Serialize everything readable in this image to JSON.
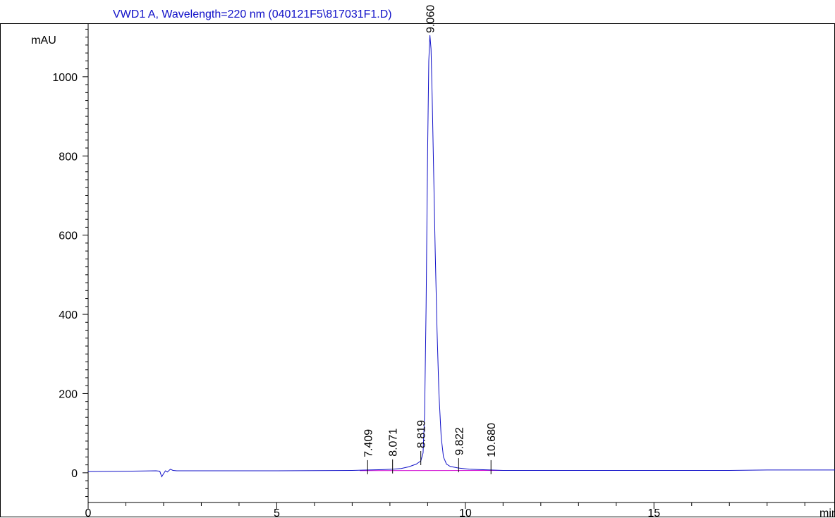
{
  "chart_data": {
    "type": "line",
    "title": "VWD1 A, Wavelength=220 nm (040121F5\\817031F1.D)",
    "ylabel": "mAU",
    "xlabel": "min",
    "xlim": [
      0,
      19.8
    ],
    "ylim": [
      -75,
      1135
    ],
    "x_ticks": [
      0,
      5,
      10,
      15
    ],
    "y_ticks": [
      0,
      200,
      400,
      600,
      800,
      1000
    ],
    "grid": false,
    "colors": {
      "signal": "#1010c8",
      "baseline": "#d000d0",
      "axis": "#000000"
    },
    "series": [
      {
        "values": [
          [
            0.0,
            3
          ],
          [
            0.5,
            3.5
          ],
          [
            1.0,
            4
          ],
          [
            1.5,
            4.5
          ],
          [
            1.8,
            5
          ],
          [
            1.9,
            4
          ],
          [
            1.95,
            -10
          ],
          [
            2.0,
            -2
          ],
          [
            2.05,
            5
          ],
          [
            2.1,
            2
          ],
          [
            2.18,
            9
          ],
          [
            2.25,
            6
          ],
          [
            2.35,
            5
          ],
          [
            3.0,
            5
          ],
          [
            4.0,
            5
          ],
          [
            5.0,
            5
          ],
          [
            6.0,
            5.5
          ],
          [
            7.0,
            6
          ],
          [
            7.409,
            7
          ],
          [
            7.8,
            8
          ],
          [
            8.071,
            9
          ],
          [
            8.3,
            11
          ],
          [
            8.5,
            15
          ],
          [
            8.7,
            22
          ],
          [
            8.819,
            30
          ],
          [
            8.88,
            50
          ],
          [
            8.92,
            150
          ],
          [
            8.96,
            420
          ],
          [
            9.0,
            820
          ],
          [
            9.03,
            1040
          ],
          [
            9.06,
            1105
          ],
          [
            9.09,
            1070
          ],
          [
            9.12,
            950
          ],
          [
            9.16,
            760
          ],
          [
            9.2,
            560
          ],
          [
            9.25,
            360
          ],
          [
            9.3,
            200
          ],
          [
            9.36,
            90
          ],
          [
            9.42,
            40
          ],
          [
            9.5,
            22
          ],
          [
            9.6,
            16
          ],
          [
            9.822,
            12
          ],
          [
            10.1,
            9
          ],
          [
            10.4,
            8
          ],
          [
            10.68,
            7
          ],
          [
            11.0,
            6
          ],
          [
            12.0,
            6
          ],
          [
            13.0,
            6
          ],
          [
            14.0,
            6
          ],
          [
            15.0,
            6
          ],
          [
            16.0,
            6
          ],
          [
            17.0,
            6
          ],
          [
            18.0,
            7
          ],
          [
            19.0,
            7
          ],
          [
            19.8,
            7
          ]
        ]
      }
    ],
    "peaks": [
      {
        "label": "7.409",
        "x": 7.409,
        "y": 7
      },
      {
        "label": "8.071",
        "x": 8.071,
        "y": 9
      },
      {
        "label": "8.819",
        "x": 8.819,
        "y": 30
      },
      {
        "label": "9.060",
        "x": 9.06,
        "y": 1105
      },
      {
        "label": "9.822",
        "x": 9.822,
        "y": 12
      },
      {
        "label": "10.680",
        "x": 10.68,
        "y": 7
      }
    ],
    "integration_baseline": [
      [
        7.2,
        5.5
      ],
      [
        11.0,
        6
      ]
    ]
  }
}
